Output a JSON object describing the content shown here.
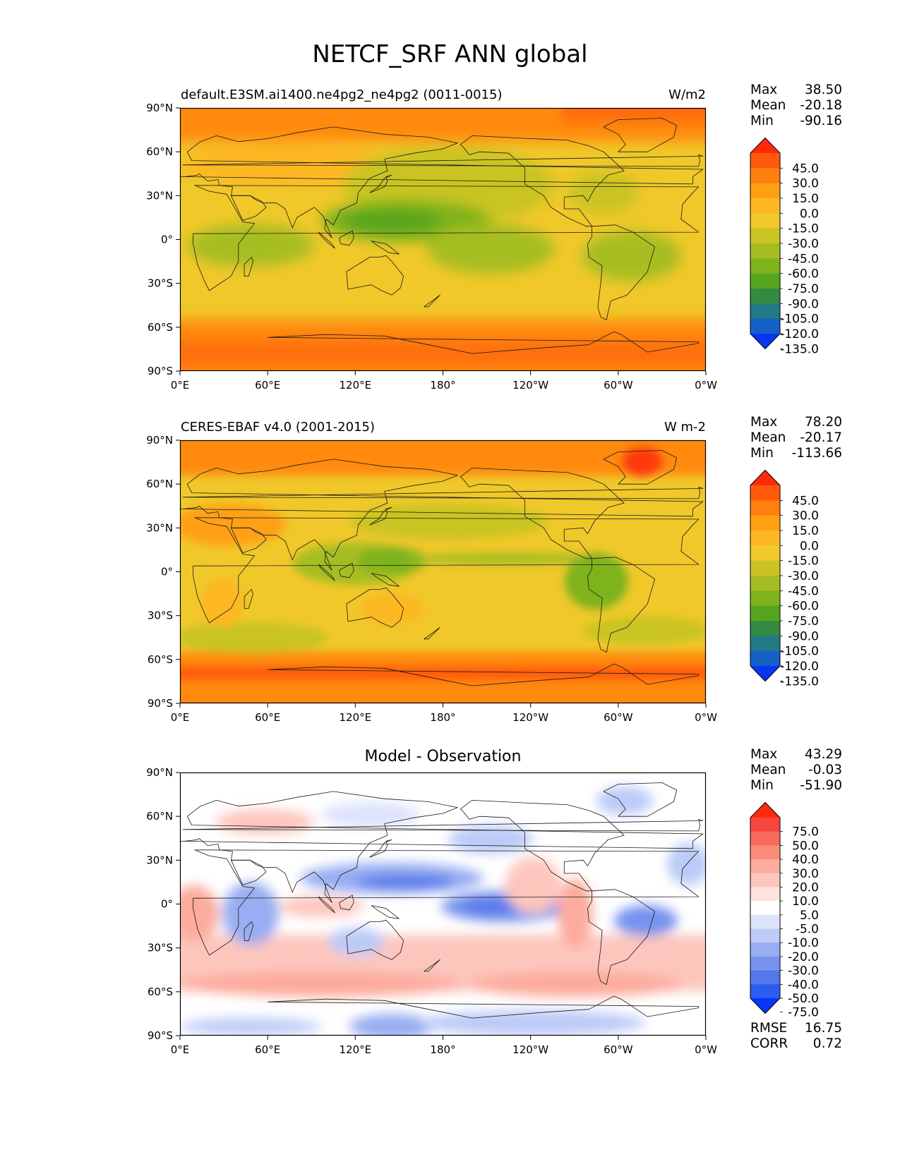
{
  "title": "NETCF_SRF ANN global",
  "x_ticks": [
    "0°E",
    "60°E",
    "120°E",
    "180°",
    "120°W",
    "60°W",
    "0°W"
  ],
  "y_ticks": [
    "90°N",
    "60°N",
    "30°N",
    "0°",
    "30°S",
    "60°S",
    "90°S"
  ],
  "panels": [
    {
      "id": "model",
      "title_left": "default.E3SM.ai1400.ne4pg2_ne4pg2 (0011-0015)",
      "units": "W/m2",
      "stats": [
        {
          "label": "Max",
          "value": "38.50"
        },
        {
          "label": "Mean",
          "value": "-20.18"
        },
        {
          "label": "Min",
          "value": "-90.16"
        }
      ],
      "colorbar": {
        "labels": [
          "45.0",
          "30.0",
          "15.0",
          "0.0",
          "-15.0",
          "-30.0",
          "-45.0",
          "-60.0",
          "-75.0",
          "-90.0",
          "-105.0",
          "-120.0",
          "-135.0"
        ],
        "colors": [
          "#ff2a0e",
          "#ff5a0c",
          "#ff7f10",
          "#ffa012",
          "#fdb824",
          "#f2c92a",
          "#c9c424",
          "#a6bd21",
          "#7eb31b",
          "#57a51e",
          "#348a41",
          "#237a85",
          "#1460c6",
          "#0836f0"
        ]
      }
    },
    {
      "id": "observation",
      "title_left": "CERES-EBAF v4.0 (2001-2015)",
      "units": "W m-2",
      "stats": [
        {
          "label": "Max",
          "value": "78.20"
        },
        {
          "label": "Mean",
          "value": "-20.17"
        },
        {
          "label": "Min",
          "value": "-113.66"
        }
      ],
      "colorbar": {
        "labels": [
          "45.0",
          "30.0",
          "15.0",
          "0.0",
          "-15.0",
          "-30.0",
          "-45.0",
          "-60.0",
          "-75.0",
          "-90.0",
          "-105.0",
          "-120.0",
          "-135.0"
        ],
        "colors": [
          "#ff2a0e",
          "#ff5a0c",
          "#ff7f10",
          "#ffa012",
          "#fdb824",
          "#f2c92a",
          "#c9c424",
          "#a6bd21",
          "#7eb31b",
          "#57a51e",
          "#348a41",
          "#237a85",
          "#1460c6",
          "#0836f0"
        ]
      }
    },
    {
      "id": "difference",
      "title_center": "Model - Observation",
      "stats": [
        {
          "label": "Max",
          "value": "43.29"
        },
        {
          "label": "Mean",
          "value": "-0.03"
        },
        {
          "label": "Min",
          "value": "-51.90"
        }
      ],
      "extra_stats": [
        {
          "label": "RMSE",
          "value": "16.75"
        },
        {
          "label": "CORR",
          "value": "0.72"
        }
      ],
      "colorbar": {
        "labels": [
          "75.0",
          "50.0",
          "40.0",
          "30.0",
          "20.0",
          "10.0",
          "5.0",
          "-5.0",
          "-10.0",
          "-20.0",
          "-30.0",
          "-40.0",
          "-50.0",
          "-75.0"
        ],
        "colors": [
          "#ff2a0e",
          "#f6473f",
          "#f76a5c",
          "#fa8c7a",
          "#fcab9c",
          "#fdc6bd",
          "#fee3de",
          "#ffffff",
          "#dde3fb",
          "#bccaf7",
          "#98adf2",
          "#7793ee",
          "#5478ea",
          "#2d5cf2",
          "#0836f8"
        ]
      }
    }
  ]
}
